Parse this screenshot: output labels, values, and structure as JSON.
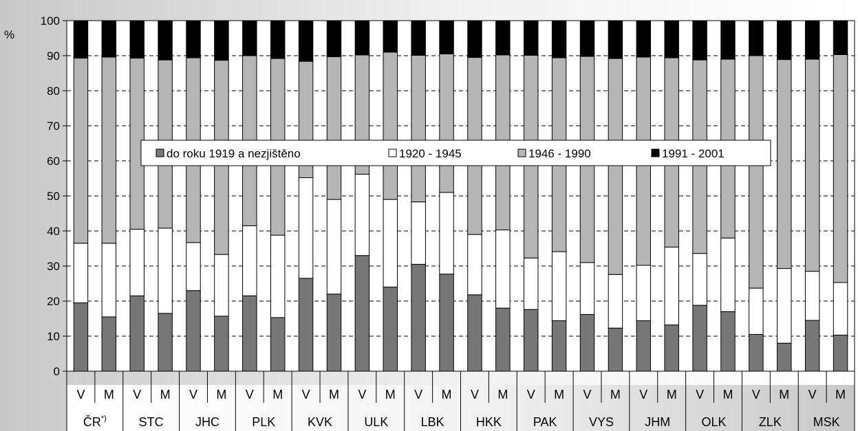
{
  "chart_data": {
    "type": "bar",
    "stacked": true,
    "ylabel": "%",
    "ylim": [
      0,
      100
    ],
    "ytick_step": 10,
    "grid": "dashed horizontal",
    "legend_position": "center-top inside plot",
    "categories": [
      "V",
      "M",
      "V",
      "M",
      "V",
      "M",
      "V",
      "M",
      "V",
      "M",
      "V",
      "M",
      "V",
      "M",
      "V",
      "M",
      "V",
      "M",
      "V",
      "M",
      "V",
      "M",
      "V",
      "M",
      "V",
      "M",
      "V",
      "M"
    ],
    "groups": [
      {
        "label": "ČR",
        "sup": "*)"
      },
      {
        "label": "STC",
        "sup": ""
      },
      {
        "label": "JHC",
        "sup": ""
      },
      {
        "label": "PLK",
        "sup": ""
      },
      {
        "label": "KVK",
        "sup": ""
      },
      {
        "label": "ULK",
        "sup": ""
      },
      {
        "label": "LBK",
        "sup": ""
      },
      {
        "label": "HKK",
        "sup": ""
      },
      {
        "label": "PAK",
        "sup": ""
      },
      {
        "label": "VYS",
        "sup": ""
      },
      {
        "label": "JHM",
        "sup": ""
      },
      {
        "label": "OLK",
        "sup": ""
      },
      {
        "label": "ZLK",
        "sup": ""
      },
      {
        "label": "MSK",
        "sup": ""
      }
    ],
    "series": [
      {
        "name": "do roku 1919 a nezjištěno",
        "color": "#777777",
        "values": [
          19.5,
          15.5,
          21.5,
          16.5,
          23.0,
          15.7,
          21.5,
          15.3,
          26.5,
          22.0,
          33.0,
          24.0,
          30.5,
          27.7,
          21.8,
          18.0,
          17.6,
          14.4,
          16.2,
          12.3,
          14.4,
          13.2,
          18.8,
          17.0,
          10.5,
          8.0,
          14.5,
          10.3
        ]
      },
      {
        "name": "1920 - 1945",
        "color": "#ffffff",
        "values": [
          17.0,
          21.0,
          19.0,
          24.3,
          13.7,
          17.6,
          20.0,
          23.5,
          28.7,
          27.0,
          23.2,
          25.0,
          17.8,
          23.3,
          17.2,
          22.3,
          14.7,
          19.7,
          14.8,
          15.3,
          15.8,
          22.2,
          14.8,
          21.0,
          13.2,
          21.3,
          14.0,
          15.0
        ]
      },
      {
        "name": "1946 - 1990",
        "color": "#b5b5b5",
        "values": [
          52.8,
          53.1,
          48.8,
          48.0,
          52.7,
          55.4,
          48.5,
          50.4,
          33.2,
          40.7,
          34.0,
          42.0,
          41.8,
          39.5,
          50.5,
          49.9,
          57.8,
          55.3,
          58.8,
          61.6,
          59.4,
          54.0,
          55.2,
          51.0,
          66.3,
          59.6,
          60.5,
          65.0
        ]
      },
      {
        "name": "1991 - 2001",
        "color": "#000000",
        "values": [
          10.7,
          10.4,
          10.7,
          11.2,
          10.6,
          11.3,
          10.0,
          10.8,
          11.6,
          10.3,
          9.8,
          9.0,
          9.9,
          9.5,
          10.5,
          9.8,
          9.9,
          10.6,
          10.2,
          10.8,
          10.4,
          10.6,
          11.2,
          11.0,
          10.0,
          11.1,
          11.0,
          9.7
        ]
      }
    ]
  }
}
